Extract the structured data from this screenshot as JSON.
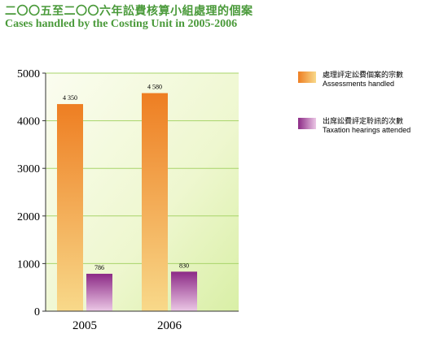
{
  "title_zh": "二〇〇五至二〇〇六年訟費核算小組處理的個案",
  "title_en": "Cases handled by the Costing Unit in 2005-2006",
  "legend": [
    {
      "zh": "處理評定訟費個案的宗數",
      "en": "Assessments handled"
    },
    {
      "zh": "出席訟費評定聆訊的次數",
      "en": "Taxation hearings attended"
    }
  ],
  "chart_data": {
    "type": "bar",
    "categories": [
      "2005",
      "2006"
    ],
    "series": [
      {
        "name": "Assessments handled",
        "values": [
          4350,
          4580
        ],
        "value_labels": [
          "4 350",
          "4 580"
        ],
        "color_top": "#ee7e22",
        "color_bottom": "#f8d98a"
      },
      {
        "name": "Taxation hearings attended",
        "values": [
          786,
          830
        ],
        "value_labels": [
          "786",
          "830"
        ],
        "color_top": "#8c2a86",
        "color_bottom": "#ecc8e6"
      }
    ],
    "yticks": [
      0,
      1000,
      2000,
      3000,
      4000,
      5000
    ],
    "ylim": [
      0,
      5000
    ],
    "grid": true,
    "legend_position": "right"
  }
}
